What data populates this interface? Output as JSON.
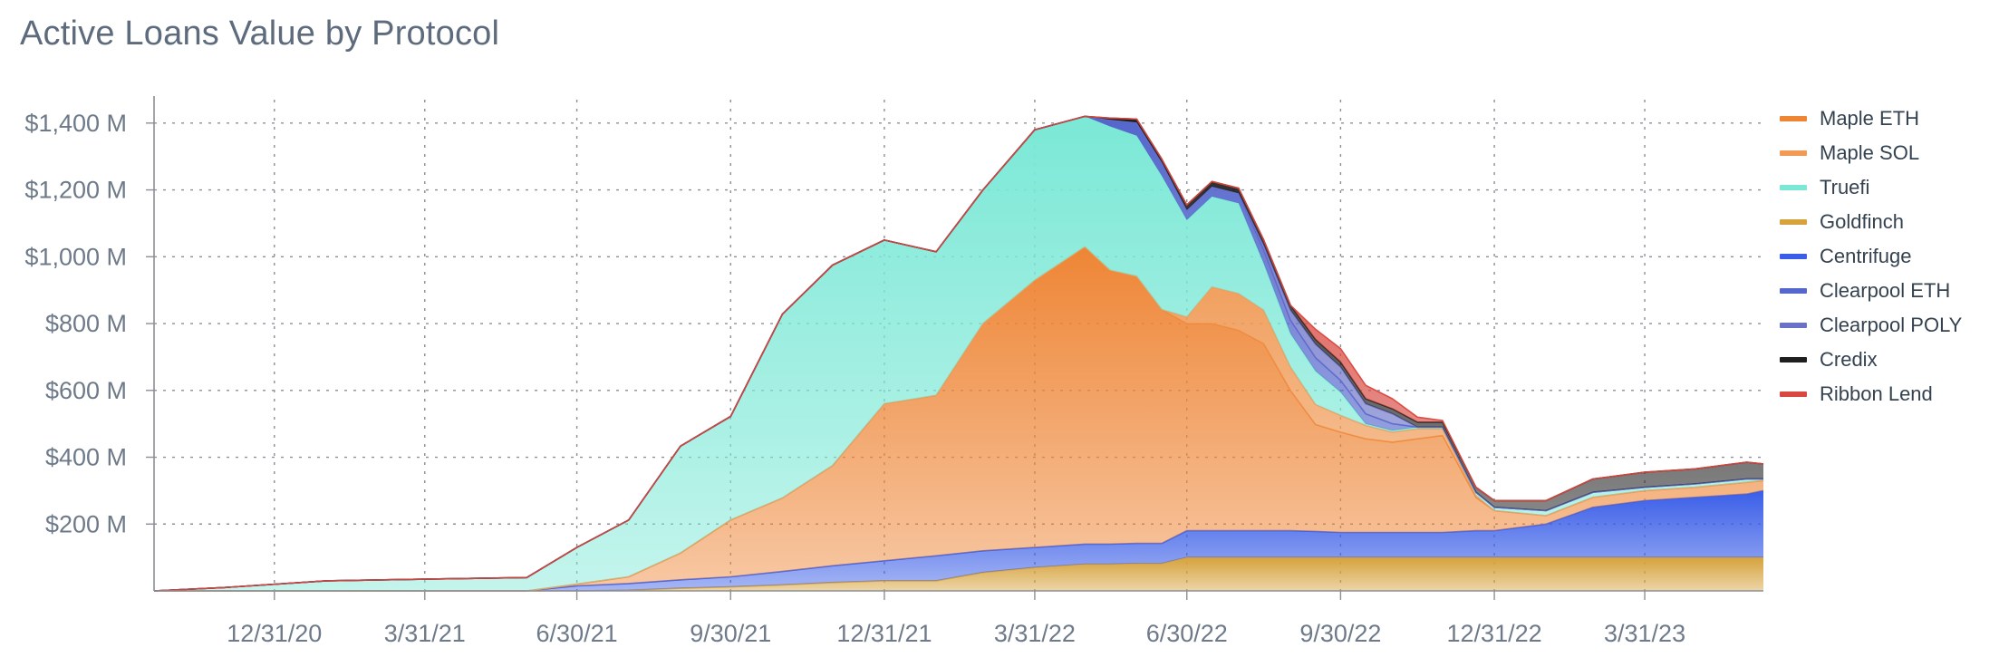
{
  "chart_data": {
    "type": "area",
    "stacked": true,
    "title": "Active Loans Value by Protocol",
    "xlabel": "",
    "ylabel": "",
    "y_unit": "$M",
    "ylim": [
      0,
      1470
    ],
    "xlim": [
      "2020-10-20",
      "2023-06-10"
    ],
    "yticks": [
      200,
      400,
      600,
      800,
      1000,
      1200,
      1400
    ],
    "ytick_labels": [
      "$200 M",
      "$400 M",
      "$600 M",
      "$800 M",
      "$1,000 M",
      "$1,200 M",
      "$1,400 M"
    ],
    "xticks": [
      "2020-12-31",
      "2021-03-31",
      "2021-06-30",
      "2021-09-30",
      "2021-12-31",
      "2022-03-31",
      "2022-06-30",
      "2022-09-30",
      "2022-12-31",
      "2023-03-31"
    ],
    "xtick_labels": [
      "12/31/20",
      "3/31/21",
      "6/30/21",
      "9/30/21",
      "12/31/21",
      "3/31/22",
      "6/30/22",
      "9/30/22",
      "12/31/22",
      "3/31/23"
    ],
    "grid": true,
    "legend_position": "right",
    "x": [
      "2020-10-20",
      "2020-12-01",
      "2021-01-31",
      "2021-03-31",
      "2021-05-31",
      "2021-06-30",
      "2021-07-31",
      "2021-08-31",
      "2021-09-30",
      "2021-10-31",
      "2021-11-30",
      "2021-12-31",
      "2022-01-31",
      "2022-02-28",
      "2022-03-31",
      "2022-04-30",
      "2022-05-15",
      "2022-05-31",
      "2022-06-15",
      "2022-06-30",
      "2022-07-15",
      "2022-07-31",
      "2022-08-15",
      "2022-08-31",
      "2022-09-15",
      "2022-09-30",
      "2022-10-15",
      "2022-10-31",
      "2022-11-15",
      "2022-11-30",
      "2022-12-20",
      "2022-12-31",
      "2023-01-31",
      "2023-02-28",
      "2023-03-31",
      "2023-04-30",
      "2023-05-31",
      "2023-06-10"
    ],
    "series": [
      {
        "name": "Goldfinch",
        "color": "#d6a23c",
        "values": [
          0,
          0,
          0,
          0,
          0,
          0,
          2,
          8,
          12,
          18,
          25,
          30,
          30,
          55,
          70,
          80,
          80,
          82,
          82,
          100,
          100,
          100,
          100,
          100,
          100,
          100,
          100,
          100,
          100,
          100,
          100,
          100,
          100,
          100,
          100,
          100,
          100,
          100
        ]
      },
      {
        "name": "Centrifuge",
        "color": "#3a5ee8",
        "values": [
          0,
          0,
          0,
          0,
          0,
          15,
          20,
          25,
          30,
          40,
          50,
          60,
          75,
          65,
          60,
          60,
          60,
          60,
          60,
          80,
          80,
          80,
          80,
          80,
          78,
          75,
          75,
          75,
          75,
          75,
          80,
          80,
          100,
          150,
          170,
          180,
          190,
          200
        ]
      },
      {
        "name": "Maple ETH",
        "color": "#ee8535",
        "values": [
          0,
          0,
          0,
          0,
          0,
          5,
          20,
          80,
          170,
          220,
          300,
          470,
          480,
          680,
          800,
          890,
          820,
          800,
          700,
          620,
          620,
          600,
          560,
          420,
          320,
          300,
          280,
          270,
          280,
          290,
          100,
          60,
          25,
          30,
          30,
          30,
          35,
          30
        ]
      },
      {
        "name": "Maple SOL",
        "color": "#f09a55",
        "values": [
          0,
          0,
          0,
          0,
          0,
          0,
          0,
          0,
          0,
          0,
          0,
          0,
          0,
          0,
          0,
          0,
          0,
          0,
          0,
          20,
          110,
          110,
          100,
          70,
          60,
          50,
          40,
          30,
          30,
          20,
          5,
          0,
          0,
          0,
          0,
          0,
          0,
          0
        ]
      },
      {
        "name": "Truefi",
        "color": "#7be8d6",
        "values": [
          0,
          10,
          30,
          35,
          40,
          110,
          170,
          320,
          310,
          550,
          600,
          490,
          430,
          400,
          450,
          390,
          430,
          420,
          400,
          290,
          270,
          270,
          140,
          100,
          100,
          70,
          5,
          5,
          5,
          5,
          10,
          10,
          15,
          15,
          10,
          10,
          10,
          5
        ]
      },
      {
        "name": "Clearpool ETH",
        "color": "#5566cc",
        "values": [
          0,
          0,
          0,
          0,
          0,
          0,
          0,
          0,
          0,
          0,
          0,
          0,
          0,
          0,
          0,
          0,
          20,
          40,
          40,
          30,
          30,
          30,
          40,
          40,
          40,
          35,
          30,
          20,
          0,
          0,
          0,
          0,
          0,
          0,
          0,
          0,
          0,
          0
        ]
      },
      {
        "name": "Clearpool POLY",
        "color": "#6a72c8",
        "values": [
          0,
          0,
          0,
          0,
          0,
          0,
          0,
          0,
          0,
          0,
          0,
          0,
          0,
          0,
          0,
          0,
          0,
          0,
          0,
          0,
          0,
          0,
          15,
          30,
          40,
          40,
          30,
          30,
          0,
          0,
          0,
          0,
          0,
          0,
          0,
          0,
          0,
          0
        ]
      },
      {
        "name": "Credix",
        "color": "#1f1f1f",
        "values": [
          0,
          0,
          0,
          0,
          0,
          0,
          0,
          0,
          0,
          0,
          0,
          0,
          0,
          0,
          0,
          0,
          5,
          10,
          10,
          15,
          15,
          15,
          15,
          15,
          15,
          15,
          15,
          15,
          15,
          15,
          15,
          20,
          30,
          40,
          45,
          45,
          50,
          45
        ]
      },
      {
        "name": "Ribbon Lend",
        "color": "#d8483f",
        "values": [
          0,
          0,
          0,
          0,
          0,
          0,
          0,
          0,
          0,
          0,
          0,
          0,
          0,
          0,
          0,
          0,
          0,
          0,
          0,
          0,
          0,
          0,
          0,
          0,
          30,
          40,
          40,
          30,
          15,
          5,
          0,
          0,
          0,
          0,
          0,
          0,
          0,
          0
        ]
      }
    ],
    "legend_order": [
      "Maple ETH",
      "Maple SOL",
      "Truefi",
      "Goldfinch",
      "Centrifuge",
      "Clearpool ETH",
      "Clearpool POLY",
      "Credix",
      "Ribbon Lend"
    ]
  }
}
